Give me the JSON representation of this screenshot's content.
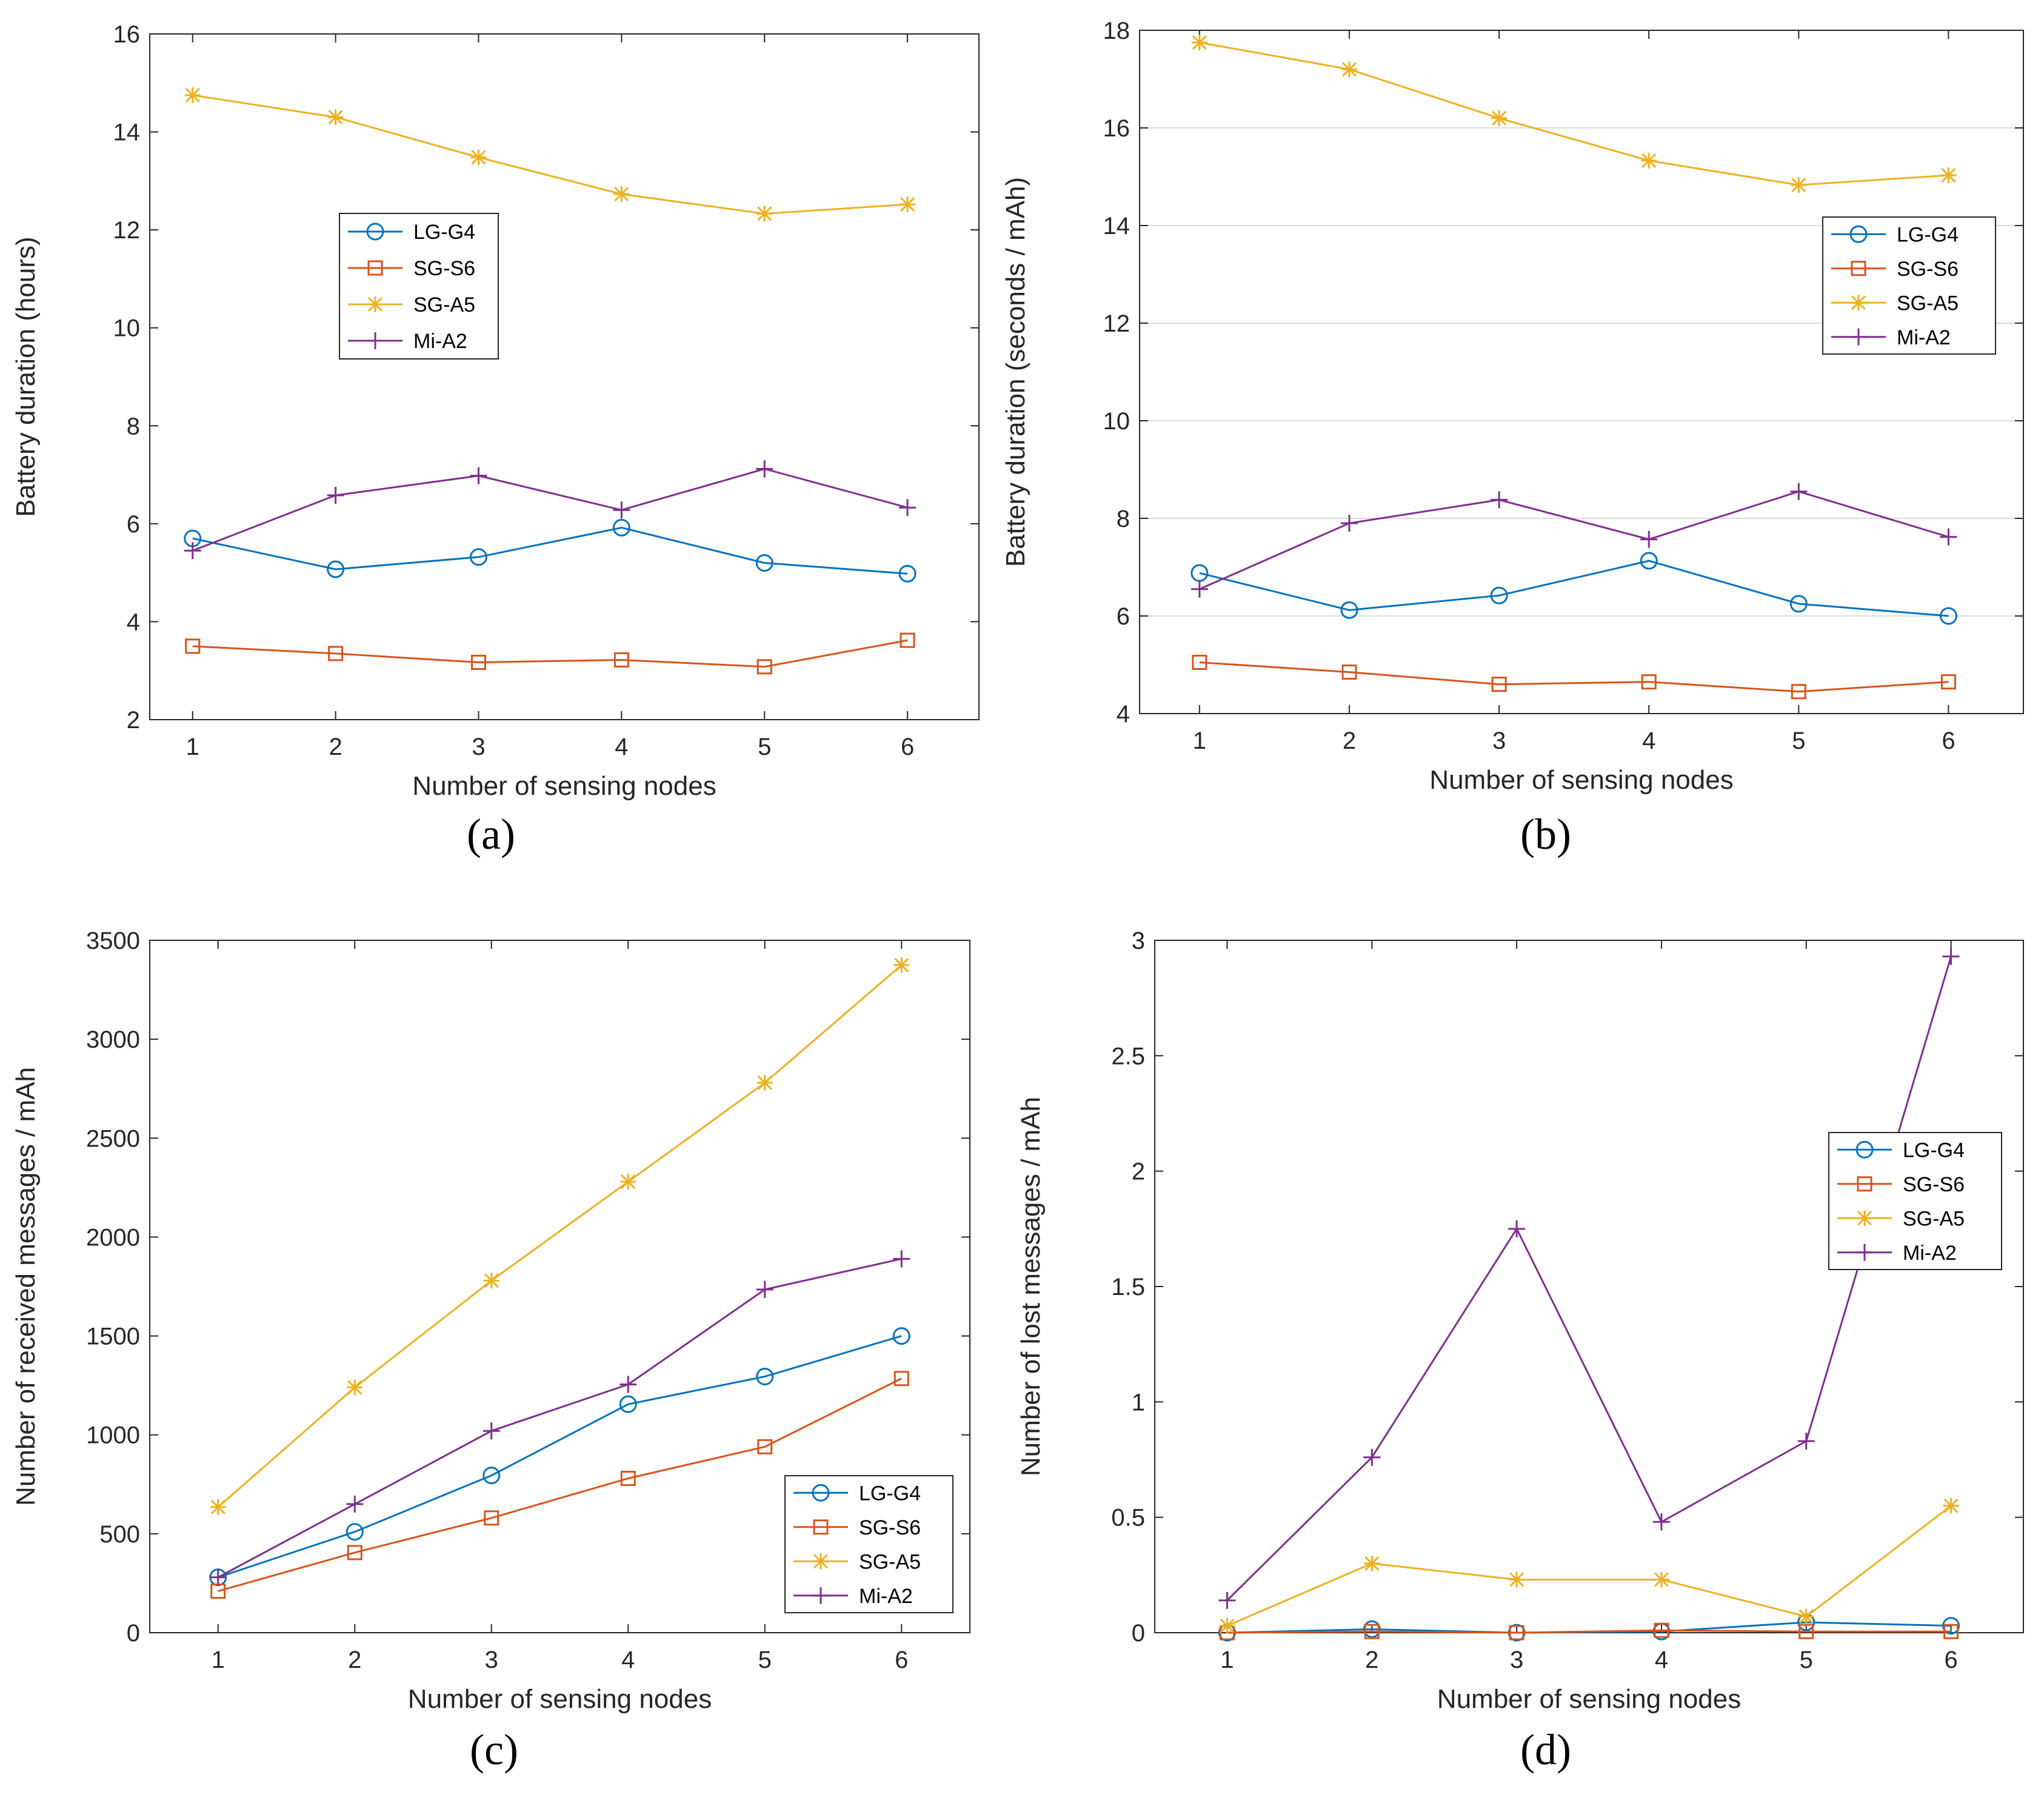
{
  "chart_data": [
    {
      "id": "a",
      "panel_label": "(a)",
      "type": "line",
      "xlabel": "Number of sensing nodes",
      "ylabel": "Battery duration (hours)",
      "x": [
        1,
        2,
        3,
        4,
        5,
        6
      ],
      "xlim": [
        0.7,
        6.5
      ],
      "ylim": [
        2,
        16
      ],
      "xticks": [
        "1",
        "2",
        "3",
        "4",
        "5",
        "6"
      ],
      "yticks": [
        "2",
        "4",
        "6",
        "8",
        "10",
        "12",
        "14",
        "16"
      ],
      "grid": false,
      "legend_position": "center",
      "series": [
        {
          "name": "LG-G4",
          "color": "#0072BD",
          "marker": "circle",
          "values": [
            5.7,
            5.07,
            5.32,
            5.92,
            5.2,
            4.98
          ]
        },
        {
          "name": "SG-S6",
          "color": "#D95319",
          "marker": "square",
          "values": [
            3.5,
            3.35,
            3.17,
            3.22,
            3.08,
            3.62
          ]
        },
        {
          "name": "SG-A5",
          "color": "#EDB120",
          "marker": "asterisk",
          "values": [
            14.75,
            14.3,
            13.48,
            12.73,
            12.33,
            12.52
          ]
        },
        {
          "name": "Mi-A2",
          "color": "#7E2F8E",
          "marker": "plus",
          "values": [
            5.45,
            6.58,
            6.98,
            6.28,
            7.12,
            6.33
          ]
        }
      ]
    },
    {
      "id": "b",
      "panel_label": "(b)",
      "type": "line",
      "xlabel": "Number of sensing nodes",
      "ylabel": "Battery duration (seconds / mAh)",
      "x": [
        1,
        2,
        3,
        4,
        5,
        6
      ],
      "xlim": [
        0.6,
        6.5
      ],
      "ylim": [
        4,
        18
      ],
      "xticks": [
        "1",
        "2",
        "3",
        "4",
        "5",
        "6"
      ],
      "yticks": [
        "4",
        "6",
        "8",
        "10",
        "12",
        "14",
        "16",
        "18"
      ],
      "grid": true,
      "legend_position": "right",
      "series": [
        {
          "name": "LG-G4",
          "color": "#0072BD",
          "marker": "circle",
          "values": [
            6.88,
            6.12,
            6.42,
            7.13,
            6.25,
            6.0
          ]
        },
        {
          "name": "SG-S6",
          "color": "#D95319",
          "marker": "square",
          "values": [
            5.05,
            4.85,
            4.6,
            4.65,
            4.45,
            4.65
          ]
        },
        {
          "name": "SG-A5",
          "color": "#EDB120",
          "marker": "asterisk",
          "values": [
            17.75,
            17.2,
            16.2,
            15.33,
            14.83,
            15.03
          ]
        },
        {
          "name": "Mi-A2",
          "color": "#7E2F8E",
          "marker": "plus",
          "values": [
            6.55,
            7.9,
            8.38,
            7.57,
            8.55,
            7.62
          ]
        }
      ]
    },
    {
      "id": "c",
      "panel_label": "(c)",
      "type": "line",
      "xlabel": "Number of sensing nodes",
      "ylabel": "Number of received messages / mAh",
      "x": [
        1,
        2,
        3,
        4,
        5,
        6
      ],
      "xlim": [
        0.5,
        6.5
      ],
      "ylim": [
        0,
        3500
      ],
      "xticks": [
        "1",
        "2",
        "3",
        "4",
        "5",
        "6"
      ],
      "yticks": [
        "0",
        "500",
        "1000",
        "1500",
        "2000",
        "2500",
        "3000",
        "3500"
      ],
      "grid": false,
      "legend_position": "bottom-right",
      "series": [
        {
          "name": "LG-G4",
          "color": "#0072BD",
          "marker": "circle",
          "values": [
            280,
            510,
            795,
            1155,
            1295,
            1500
          ]
        },
        {
          "name": "SG-S6",
          "color": "#D95319",
          "marker": "square",
          "values": [
            210,
            405,
            580,
            780,
            940,
            1285
          ]
        },
        {
          "name": "SG-A5",
          "color": "#EDB120",
          "marker": "asterisk",
          "values": [
            635,
            1240,
            1780,
            2280,
            2780,
            3375
          ]
        },
        {
          "name": "Mi-A2",
          "color": "#7E2F8E",
          "marker": "plus",
          "values": [
            280,
            650,
            1020,
            1255,
            1735,
            1890
          ]
        }
      ]
    },
    {
      "id": "d",
      "panel_label": "(d)",
      "type": "line",
      "xlabel": "Number of sensing nodes",
      "ylabel": "Number of lost messages / mAh",
      "x": [
        1,
        2,
        3,
        4,
        5,
        6
      ],
      "xlim": [
        0.5,
        6.5
      ],
      "ylim": [
        0,
        3
      ],
      "xticks": [
        "1",
        "2",
        "3",
        "4",
        "5",
        "6"
      ],
      "yticks": [
        "0",
        "0.5",
        "1",
        "1.5",
        "2",
        "2.5",
        "3"
      ],
      "grid": false,
      "legend_position": "right",
      "series": [
        {
          "name": "LG-G4",
          "color": "#0072BD",
          "marker": "circle",
          "values": [
            0.0,
            0.015,
            0.0,
            0.005,
            0.045,
            0.03
          ]
        },
        {
          "name": "SG-S6",
          "color": "#D95319",
          "marker": "square",
          "values": [
            0.0,
            0.005,
            0.0,
            0.01,
            0.005,
            0.005
          ]
        },
        {
          "name": "SG-A5",
          "color": "#EDB120",
          "marker": "asterisk",
          "values": [
            0.03,
            0.3,
            0.23,
            0.23,
            0.07,
            0.55
          ]
        },
        {
          "name": "Mi-A2",
          "color": "#7E2F8E",
          "marker": "plus",
          "values": [
            0.14,
            0.76,
            1.75,
            0.48,
            0.83,
            2.93
          ]
        }
      ]
    }
  ]
}
